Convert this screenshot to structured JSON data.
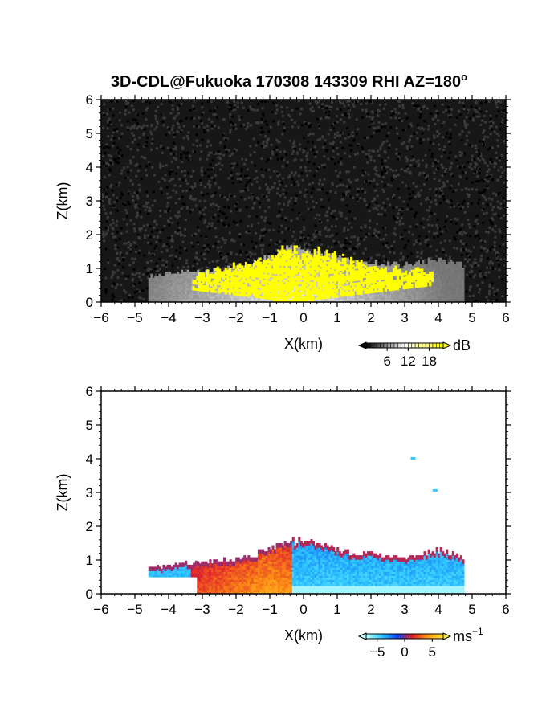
{
  "title": "3D-CDL@Fukuoka 170308 143309 RHI AZ=180",
  "title_superscript": "o",
  "chart_data": [
    {
      "type": "heatmap",
      "field": "signal intensity",
      "xlabel": "X(km)",
      "ylabel": "Z(km)",
      "xlim": [
        -6,
        6
      ],
      "ylim": [
        0,
        6
      ],
      "xticks": [
        -6,
        -5,
        -4,
        -3,
        -2,
        -1,
        0,
        1,
        2,
        3,
        4,
        5,
        6
      ],
      "yticks": [
        0,
        1,
        2,
        3,
        4,
        5,
        6
      ],
      "background": "noise",
      "colorbar": {
        "unit": "dB",
        "unit_superscript": "",
        "ticks": [
          6,
          12,
          18
        ],
        "range": [
          0,
          22
        ],
        "colors": [
          "#000000",
          "#ffffff",
          "#ffff00"
        ]
      },
      "echo": {
        "profile_x": [
          -4.6,
          -4.0,
          -3.0,
          -2.0,
          -1.5,
          -1.0,
          -0.5,
          0.0,
          0.5,
          1.0,
          1.5,
          2.0,
          2.5,
          3.0,
          3.5,
          4.0,
          4.5,
          4.75
        ],
        "profile_top": [
          0.75,
          0.85,
          0.95,
          1.0,
          1.15,
          1.35,
          1.6,
          1.55,
          1.45,
          1.3,
          1.2,
          1.2,
          1.15,
          1.1,
          1.2,
          1.3,
          1.15,
          1.1
        ],
        "core_x": [
          -3.3,
          -2.5,
          -1.5,
          -1.0,
          -0.5,
          0.0,
          0.5,
          1.0,
          1.5,
          2.0,
          2.5,
          3.0,
          3.5,
          3.8
        ],
        "core_top": [
          0.8,
          0.95,
          1.2,
          1.35,
          1.6,
          1.4,
          1.5,
          1.3,
          1.2,
          1.1,
          1.0,
          0.95,
          0.95,
          0.9
        ]
      }
    },
    {
      "type": "heatmap",
      "field": "Doppler velocity",
      "xlabel": "X(km)",
      "ylabel": "Z(km)",
      "xlim": [
        -6,
        6
      ],
      "ylim": [
        0,
        6
      ],
      "xticks": [
        -6,
        -5,
        -4,
        -3,
        -2,
        -1,
        0,
        1,
        2,
        3,
        4,
        5,
        6
      ],
      "yticks": [
        0,
        1,
        2,
        3,
        4,
        5,
        6
      ],
      "background": "white",
      "colorbar": {
        "unit": "ms",
        "unit_superscript": "−1",
        "ticks": [
          "−5",
          "0",
          "5"
        ],
        "tick_values": [
          -5,
          0,
          5
        ],
        "range": [
          -7,
          7
        ],
        "colors": [
          "#bfffff",
          "#2ec8ff",
          "#0a48f0",
          "#e0202c",
          "#ff9a14",
          "#ffe83c"
        ]
      },
      "echo": {
        "profile_x": [
          -4.6,
          -4.0,
          -3.0,
          -2.0,
          -1.5,
          -1.0,
          -0.5,
          0.0,
          0.5,
          1.0,
          1.5,
          2.0,
          2.5,
          3.0,
          3.5,
          4.0,
          4.5,
          4.75
        ],
        "profile_top": [
          0.75,
          0.85,
          0.95,
          1.0,
          1.15,
          1.35,
          1.6,
          1.55,
          1.45,
          1.3,
          1.2,
          1.2,
          1.15,
          1.1,
          1.2,
          1.3,
          1.15,
          1.1
        ],
        "isolated_points": [
          [
            3.25,
            4.0
          ],
          [
            3.9,
            3.05
          ]
        ]
      }
    }
  ]
}
